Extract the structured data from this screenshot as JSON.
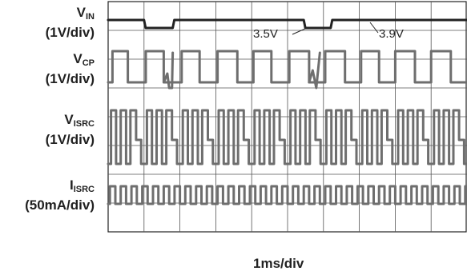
{
  "chart_data": {
    "type": "line",
    "title": "",
    "xlabel": "1ms/div",
    "grid": true,
    "x_divisions": 10,
    "y_divisions": 8,
    "channels": [
      {
        "name": "V",
        "sub": "IN",
        "scale": "(1V/div)"
      },
      {
        "name": "V",
        "sub": "CP",
        "scale": "(1V/div)"
      },
      {
        "name": "V",
        "sub": "ISRC",
        "scale": "(1V/div)"
      },
      {
        "name": "I",
        "sub": "ISRC",
        "scale": "(50mA/div)"
      }
    ],
    "annotations": [
      "3.5V",
      "3.9V"
    ],
    "vin_levels": {
      "high": 3.9,
      "low": 3.5
    },
    "vin_dips_ms": [
      [
        1.0,
        1.8
      ],
      [
        5.45,
        6.2
      ]
    ],
    "trace_color": "#6e6e6e",
    "vin_color": "#222222"
  }
}
